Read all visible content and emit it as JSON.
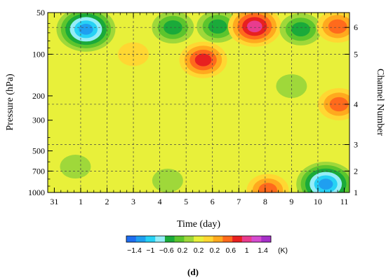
{
  "chart_data": {
    "type": "heatmap",
    "title": "",
    "xlabel": "Time (day)",
    "ylabel": "Pressure (hPa)",
    "y2label": "Channel Number",
    "x_ticks": [
      "31",
      "1",
      "2",
      "3",
      "4",
      "5",
      "6",
      "7",
      "8",
      "9",
      "10",
      "11"
    ],
    "x_tick_values": [
      0,
      1,
      2,
      3,
      4,
      5,
      6,
      7,
      8,
      9,
      10,
      11
    ],
    "xlim": [
      -0.25,
      11.2
    ],
    "y_scale": "log",
    "ylim": [
      50,
      1000
    ],
    "y_ticks": [
      "50",
      "100",
      "200",
      "300",
      "500",
      "700",
      "1000"
    ],
    "y_tick_values": [
      50,
      100,
      200,
      300,
      500,
      700,
      1000
    ],
    "y_minor_ticks": [
      60,
      70,
      80,
      90,
      400,
      600,
      800,
      900
    ],
    "channels": [
      {
        "label": "1",
        "pressure": 1000
      },
      {
        "label": "2",
        "pressure": 700
      },
      {
        "label": "3",
        "pressure": 450
      },
      {
        "label": "4",
        "pressure": 230
      },
      {
        "label": "5",
        "pressure": 100
      },
      {
        "label": "6",
        "pressure": 64
      }
    ],
    "dashed_grid_x": [
      1,
      2,
      3,
      4,
      5,
      6,
      7,
      8,
      9,
      10
    ],
    "colorbar": {
      "unit": "(K)",
      "tick_labels": [
        "−1.4",
        "−1",
        "−0.6",
        "0.2",
        "0.2",
        "0.2",
        "0.6",
        "1",
        "1.4"
      ],
      "colors": [
        "#1f6ef0",
        "#1f9ff0",
        "#27d2f5",
        "#95edf8",
        "#1aaa3a",
        "#5cc52d",
        "#9fd83a",
        "#e8f03a",
        "#ffd732",
        "#ffa91e",
        "#ff6a1c",
        "#e82020",
        "#e83c8e",
        "#d54bd0",
        "#a630c8"
      ]
    },
    "background_value": 0.0,
    "anomalies": [
      {
        "x": 1.2,
        "p": 66,
        "value": -1.2
      },
      {
        "x": 4.5,
        "p": 64,
        "value": -0.7
      },
      {
        "x": 6.2,
        "p": 63,
        "value": -0.7
      },
      {
        "x": 7.6,
        "p": 63,
        "value": 1.0
      },
      {
        "x": 9.35,
        "p": 66,
        "value": -0.7
      },
      {
        "x": 10.75,
        "p": 63,
        "value": 0.6
      },
      {
        "x": 5.65,
        "p": 110,
        "value": 0.8
      },
      {
        "x": 3.0,
        "p": 100,
        "value": 0.3
      },
      {
        "x": 10.8,
        "p": 230,
        "value": 0.5
      },
      {
        "x": 10.3,
        "p": 870,
        "value": -1.2
      },
      {
        "x": 8.1,
        "p": 960,
        "value": 0.5
      },
      {
        "x": 9.0,
        "p": 170,
        "value": -0.3
      },
      {
        "x": 4.3,
        "p": 820,
        "value": -0.3
      },
      {
        "x": 0.8,
        "p": 650,
        "value": -0.2
      }
    ],
    "panel_label": "(d)"
  }
}
